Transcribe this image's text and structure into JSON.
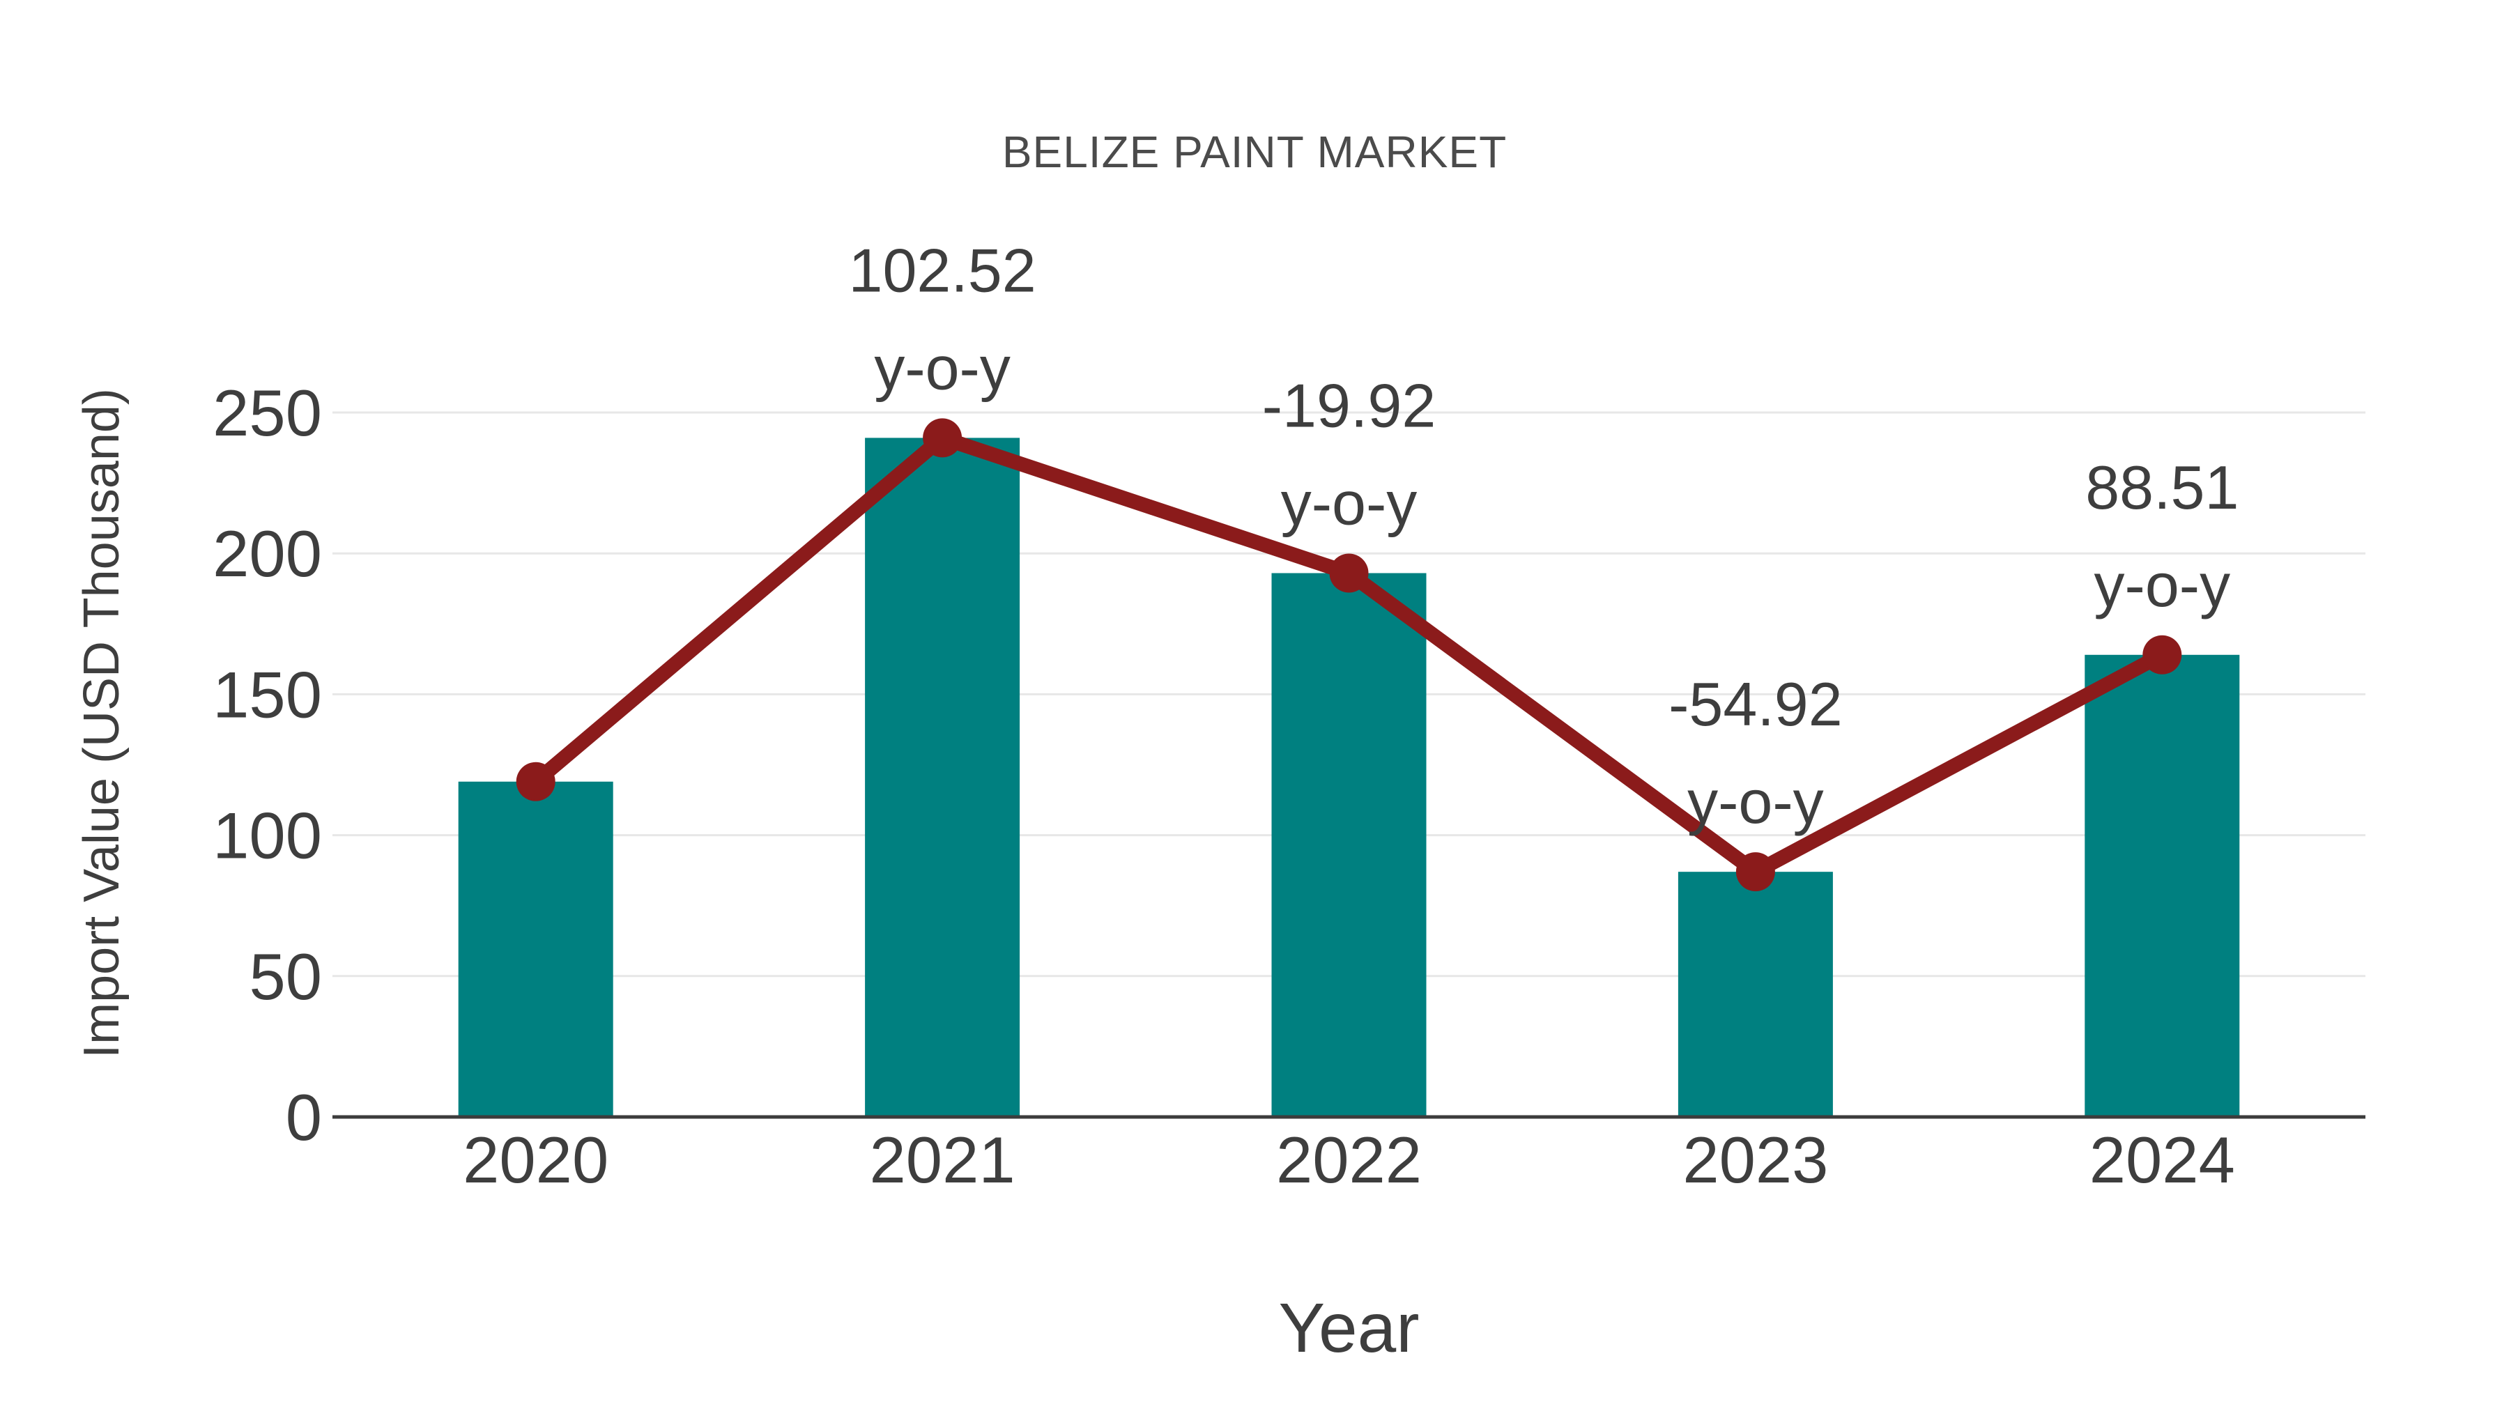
{
  "chart_data": {
    "type": "bar",
    "title": "BELIZE PAINT MARKET",
    "xlabel": "Year",
    "ylabel": "Import Value (USD Thousand)",
    "categories": [
      "2020",
      "2021",
      "2022",
      "2023",
      "2024"
    ],
    "series": [
      {
        "name": "import-value-bars",
        "type": "bar",
        "values": [
          119,
          241,
          193,
          87,
          164
        ]
      },
      {
        "name": "trend-line",
        "type": "line",
        "values": [
          119,
          241,
          193,
          87,
          164
        ]
      }
    ],
    "annotations": [
      {
        "category": "2021",
        "value": "102.52",
        "label": "y-o-y"
      },
      {
        "category": "2022",
        "value": "-19.92",
        "label": "y-o-y"
      },
      {
        "category": "2023",
        "value": "-54.92",
        "label": "y-o-y"
      },
      {
        "category": "2024",
        "value": "88.51",
        "label": "y-o-y"
      }
    ],
    "yticks": [
      0,
      50,
      100,
      150,
      200,
      250
    ],
    "ylim": [
      0,
      250
    ],
    "grid": true,
    "legend": "none",
    "colors": {
      "bar": "#008080",
      "line": "#8b1b1b",
      "marker": "#8b1b1b",
      "tick_text": "#3e3e3e",
      "annotation_text": "#3e3e3e",
      "title_text": "#4b4b4b",
      "axis_label_text": "#3e3e3e",
      "gridline": "#e7e7e7",
      "axis_line": "#3c3c3c",
      "background": "#ffffff"
    }
  }
}
